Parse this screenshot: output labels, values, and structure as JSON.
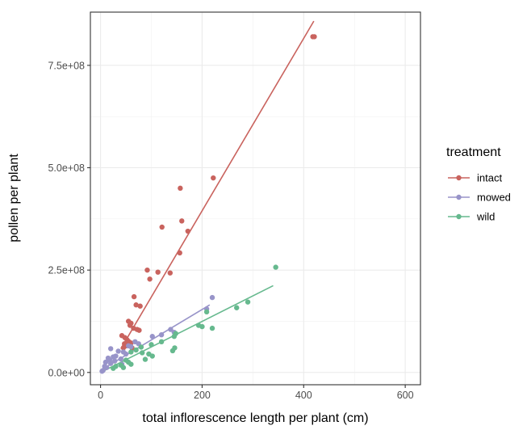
{
  "chart_data": {
    "type": "scatter",
    "title": "",
    "xlabel": "total inflorescence length per plant (cm)",
    "ylabel": "pollen per plant",
    "xlim": [
      -20,
      630
    ],
    "ylim": [
      -30000000,
      880000000
    ],
    "x_ticks": [
      0,
      200,
      400,
      600
    ],
    "x_tick_labels": [
      "0",
      "200",
      "400",
      "600"
    ],
    "y_ticks": [
      0,
      250000000,
      500000000,
      750000000
    ],
    "y_tick_labels": [
      "0.0e+00",
      "2.5e+08",
      "5.0e+08",
      "7.5e+08"
    ],
    "grid": true,
    "legend_position": "right",
    "legend_title": "treatment",
    "series": [
      {
        "name": "intact",
        "color": "#c9635e",
        "points": [
          [
            418,
            820000000
          ],
          [
            421,
            820000000
          ],
          [
            222,
            475000000
          ],
          [
            157,
            450000000
          ],
          [
            160,
            370000000
          ],
          [
            121,
            355000000
          ],
          [
            172,
            345000000
          ],
          [
            156,
            292000000
          ],
          [
            92,
            250000000
          ],
          [
            113,
            245000000
          ],
          [
            137,
            243000000
          ],
          [
            97,
            228000000
          ],
          [
            66,
            185000000
          ],
          [
            70,
            165000000
          ],
          [
            78,
            162000000
          ],
          [
            55,
            125000000
          ],
          [
            60,
            120000000
          ],
          [
            58,
            115000000
          ],
          [
            65,
            108000000
          ],
          [
            72,
            105000000
          ],
          [
            76,
            103000000
          ],
          [
            42,
            90000000
          ],
          [
            48,
            85000000
          ],
          [
            52,
            80000000
          ],
          [
            55,
            76000000
          ],
          [
            60,
            72000000
          ],
          [
            47,
            70000000
          ],
          [
            50,
            65000000
          ],
          [
            45,
            60000000
          ],
          [
            62,
            60000000
          ]
        ],
        "fit": [
          [
            40,
            58000000
          ],
          [
            420,
            858000000
          ]
        ]
      },
      {
        "name": "mowed",
        "color": "#9894c9",
        "points": [
          [
            220,
            183000000
          ],
          [
            209,
            155000000
          ],
          [
            138,
            105000000
          ],
          [
            145,
            98000000
          ],
          [
            120,
            92000000
          ],
          [
            102,
            88000000
          ],
          [
            68,
            75000000
          ],
          [
            75,
            70000000
          ],
          [
            55,
            65000000
          ],
          [
            60,
            63000000
          ],
          [
            20,
            58000000
          ],
          [
            35,
            52000000
          ],
          [
            45,
            50000000
          ],
          [
            50,
            45000000
          ],
          [
            30,
            40000000
          ],
          [
            25,
            38000000
          ],
          [
            15,
            35000000
          ],
          [
            40,
            33000000
          ],
          [
            10,
            25000000
          ],
          [
            20,
            22000000
          ],
          [
            8,
            15000000
          ],
          [
            12,
            12000000
          ],
          [
            5,
            5000000
          ],
          [
            3,
            3000000
          ],
          [
            18,
            30000000
          ],
          [
            28,
            28000000
          ],
          [
            42,
            20000000
          ]
        ],
        "fit": [
          [
            0,
            5000000
          ],
          [
            215,
            165000000
          ]
        ]
      },
      {
        "name": "wild",
        "color": "#66b98e",
        "points": [
          [
            345,
            257000000
          ],
          [
            290,
            172000000
          ],
          [
            268,
            158000000
          ],
          [
            209,
            148000000
          ],
          [
            193,
            115000000
          ],
          [
            200,
            112000000
          ],
          [
            220,
            108000000
          ],
          [
            148,
            95000000
          ],
          [
            145,
            88000000
          ],
          [
            120,
            75000000
          ],
          [
            100,
            68000000
          ],
          [
            80,
            62000000
          ],
          [
            70,
            55000000
          ],
          [
            60,
            50000000
          ],
          [
            82,
            48000000
          ],
          [
            95,
            45000000
          ],
          [
            146,
            60000000
          ],
          [
            142,
            53000000
          ],
          [
            102,
            40000000
          ],
          [
            88,
            32000000
          ],
          [
            50,
            30000000
          ],
          [
            55,
            25000000
          ],
          [
            30,
            15000000
          ],
          [
            40,
            18000000
          ],
          [
            25,
            10000000
          ],
          [
            45,
            12000000
          ],
          [
            60,
            20000000
          ]
        ],
        "fit": [
          [
            0,
            0
          ],
          [
            340,
            212000000
          ]
        ]
      }
    ]
  }
}
